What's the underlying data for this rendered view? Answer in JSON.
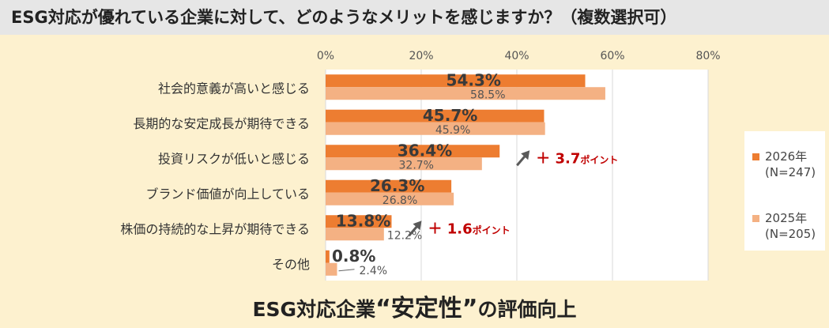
{
  "header": {
    "title": "ESG対応が優れている企業に対して、どのようなメリットを感じますか？（複数選択可）"
  },
  "footer": {
    "prefix": "ESG対応企業",
    "highlight": "“安定性”",
    "suffix": "の評価向上"
  },
  "legend": {
    "items": [
      {
        "line1": "2026年",
        "line2": "(N=247)"
      },
      {
        "line1": "2025年",
        "line2": "(N=205)"
      }
    ]
  },
  "chart_data": {
    "type": "bar",
    "orientation": "horizontal",
    "categories": [
      "社会的意義が高いと感じる",
      "長期的な安定成長が期待できる",
      "投資リスクが低いと感じる",
      "ブランド価値が向上している",
      "株価の持続的な上昇が期待できる",
      "その他"
    ],
    "series": [
      {
        "name": "2026年(N=247)",
        "values": [
          54.3,
          45.7,
          36.4,
          26.3,
          13.8,
          0.8
        ],
        "labels": [
          "54.3%",
          "45.7%",
          "36.4%",
          "26.3%",
          "13.8%",
          "0.8%"
        ]
      },
      {
        "name": "2025年(N=205)",
        "values": [
          58.5,
          45.9,
          32.7,
          26.8,
          12.2,
          2.4
        ],
        "labels": [
          "58.5%",
          "45.9%",
          "32.7%",
          "26.8%",
          "12.2%",
          "2.4%"
        ]
      }
    ],
    "xlim": [
      0,
      80
    ],
    "xticks": [
      0,
      20,
      40,
      60,
      80
    ],
    "xtick_labels": [
      "0%",
      "20%",
      "40%",
      "60%",
      "80%"
    ],
    "grid": true,
    "legend_position": "right",
    "annotations": [
      {
        "category_index": 2,
        "text": "＋ 3.7",
        "unit": "ポイント"
      },
      {
        "category_index": 4,
        "text": "＋ 1.6",
        "unit": "ポイント"
      }
    ],
    "colors": {
      "series_2026": "#ed7d31",
      "series_2025": "#f4b183",
      "annotation": "#c00000",
      "arrow": "#595959",
      "gridline": "#d9d9d9"
    }
  }
}
